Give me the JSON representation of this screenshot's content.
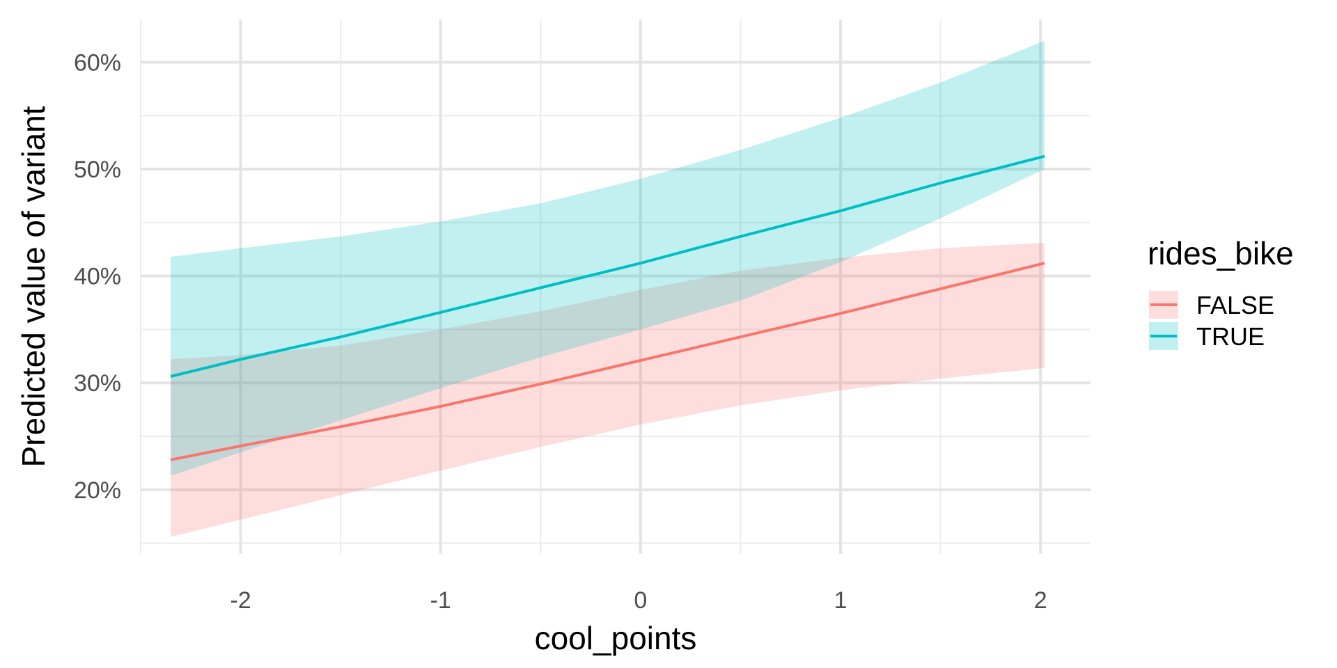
{
  "chart_data": {
    "type": "line",
    "xlabel": "cool_points",
    "ylabel": "Predicted value of variant",
    "xlim": [
      -2.5,
      2.25
    ],
    "ylim": [
      0.14,
      0.64
    ],
    "x_major_ticks": [
      -2,
      -1,
      0,
      1,
      2
    ],
    "x_tick_labels": [
      "-2",
      "-1",
      "0",
      "1",
      "2"
    ],
    "x_minor_ticks": [
      -2.5,
      -1.5,
      -0.5,
      0.5,
      1.5
    ],
    "y_major_ticks": [
      0.2,
      0.3,
      0.4,
      0.5,
      0.6
    ],
    "y_tick_labels": [
      "20%",
      "30%",
      "40%",
      "50%",
      "60%"
    ],
    "y_minor_ticks": [
      0.15,
      0.25,
      0.35,
      0.45,
      0.55
    ],
    "grid": true,
    "legend": {
      "title": "rides_bike",
      "placement": "right"
    },
    "series": [
      {
        "name": "FALSE",
        "color": "#F8766D",
        "x": [
          -2.35,
          -2.0,
          -1.5,
          -1.0,
          -0.5,
          0.0,
          0.5,
          1.0,
          1.5,
          2.02
        ],
        "y": [
          0.228,
          0.241,
          0.259,
          0.278,
          0.299,
          0.321,
          0.343,
          0.365,
          0.388,
          0.412
        ],
        "lower": [
          0.156,
          0.172,
          0.195,
          0.218,
          0.24,
          0.261,
          0.279,
          0.293,
          0.304,
          0.314
        ],
        "upper": [
          0.322,
          0.326,
          0.335,
          0.35,
          0.367,
          0.387,
          0.405,
          0.417,
          0.426,
          0.431
        ]
      },
      {
        "name": "TRUE",
        "color": "#00BFC4",
        "x": [
          -2.35,
          -2.0,
          -1.5,
          -1.0,
          -0.5,
          0.0,
          0.5,
          1.0,
          1.5,
          2.02
        ],
        "y": [
          0.306,
          0.322,
          0.343,
          0.366,
          0.389,
          0.412,
          0.437,
          0.461,
          0.487,
          0.512
        ],
        "lower": [
          0.213,
          0.235,
          0.265,
          0.295,
          0.324,
          0.35,
          0.377,
          0.413,
          0.454,
          0.5
        ],
        "upper": [
          0.418,
          0.426,
          0.437,
          0.451,
          0.468,
          0.491,
          0.518,
          0.548,
          0.581,
          0.62
        ]
      }
    ]
  }
}
